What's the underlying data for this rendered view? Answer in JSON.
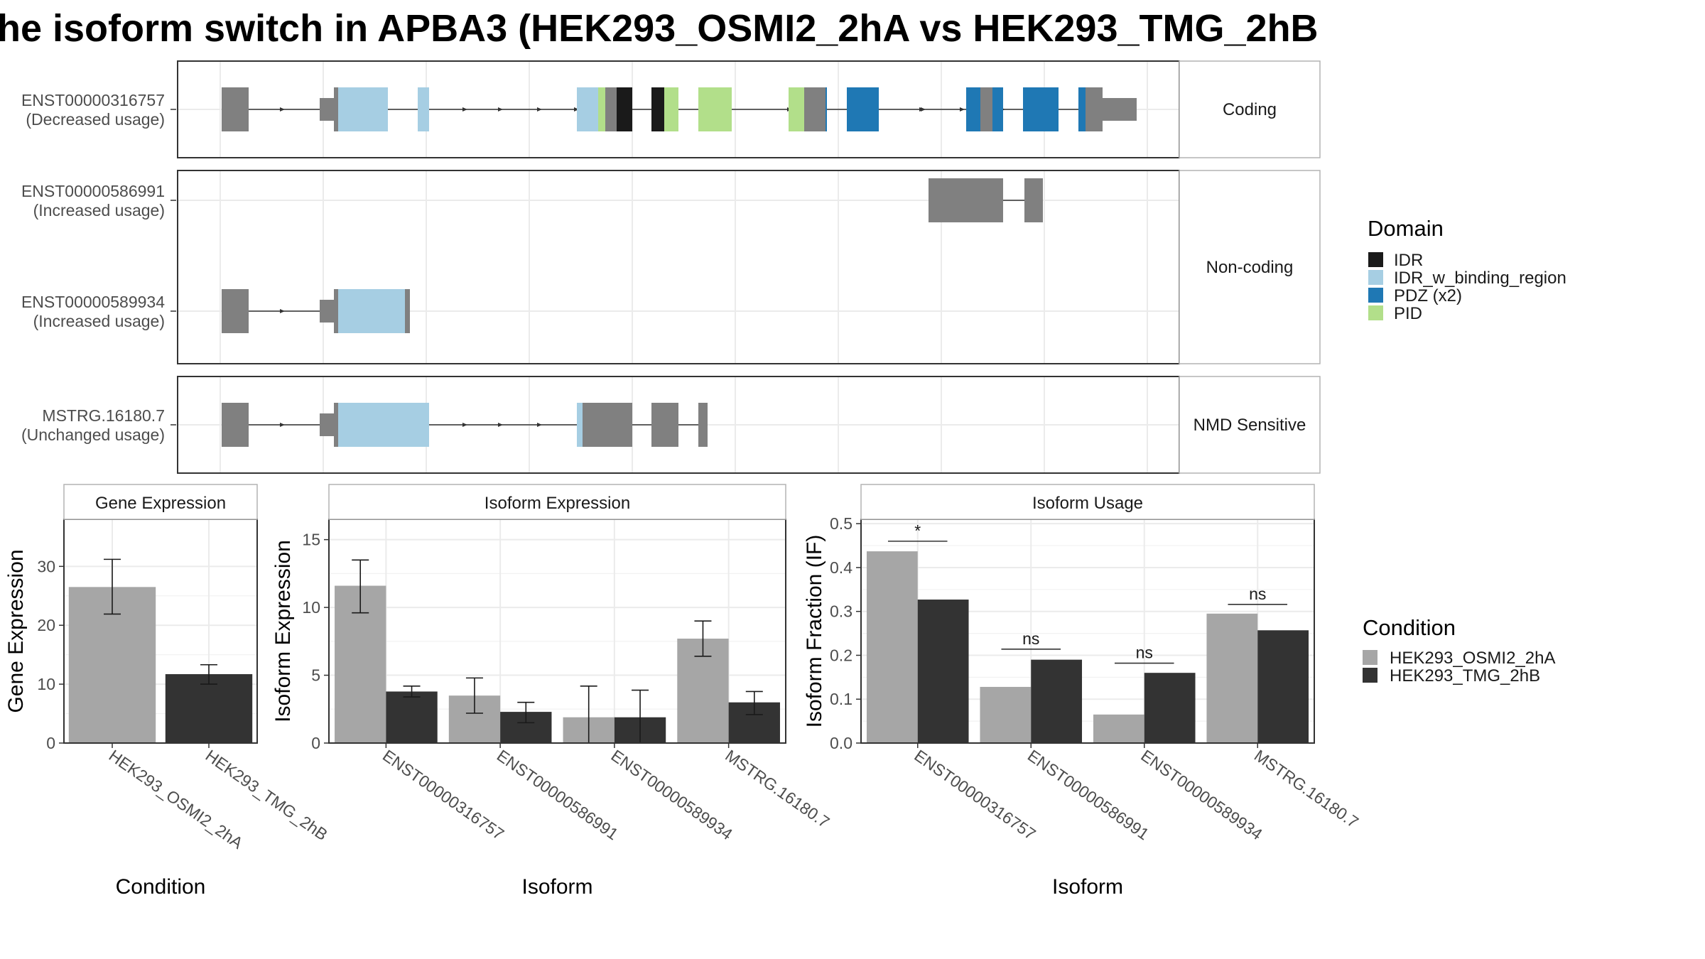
{
  "title": "he isoform switch in APBA3 (HEK293_OSMI2_2hA vs HEK293_TMG_2hB",
  "transcripts": [
    {
      "id": "ENST00000316757",
      "usage": "(Decreased usage)",
      "group": "Coding"
    },
    {
      "id": "ENST00000586991",
      "usage": "(Increased usage)",
      "group": "Non-coding"
    },
    {
      "id": "ENST00000589934",
      "usage": "(Increased usage)",
      "group": "Non-coding"
    },
    {
      "id": "MSTRG.16180.7",
      "usage": "(Unchanged usage)",
      "group": "NMD Sensitive"
    }
  ],
  "groups": [
    "Coding",
    "Non-coding",
    "NMD Sensitive"
  ],
  "domain_legend": {
    "title": "Domain",
    "items": [
      {
        "label": "IDR",
        "color": "#1a1a1a"
      },
      {
        "label": "IDR_w_binding_region",
        "color": "#a6cee3"
      },
      {
        "label": "PDZ (x2)",
        "color": "#1f78b4"
      },
      {
        "label": "PID",
        "color": "#b2df8a"
      }
    ]
  },
  "condition_legend": {
    "title": "Condition",
    "items": [
      {
        "label": "HEK293_OSMI2_2hA",
        "color": "#a6a6a6"
      },
      {
        "label": "HEK293_TMG_2hB",
        "color": "#333333"
      }
    ]
  },
  "colors": {
    "exon": "#808080",
    "idr": "#1a1a1a",
    "idr_binding": "#a6cee3",
    "pdz": "#1f78b4",
    "pid": "#b2df8a"
  },
  "chart_data": [
    {
      "type": "bar",
      "title": "Gene Expression",
      "xlabel": "Condition",
      "ylabel": "Gene Expression",
      "categories": [
        "HEK293_OSMI2_2hA",
        "HEK293_TMG_2hB"
      ],
      "values": [
        26.5,
        11.7
      ],
      "error_low": [
        21.9,
        10.0
      ],
      "error_high": [
        31.2,
        13.3
      ],
      "ylim": [
        0,
        38
      ],
      "yticks": [
        0,
        10,
        20,
        30
      ]
    },
    {
      "type": "bar",
      "title": "Isoform Expression",
      "xlabel": "Isoform",
      "ylabel": "Isoform Expression",
      "categories": [
        "ENST00000316757",
        "ENST00000586991",
        "ENST00000589934",
        "MSTRG.16180.7"
      ],
      "series": [
        {
          "name": "HEK293_OSMI2_2hA",
          "values": [
            11.6,
            3.5,
            1.9,
            7.7
          ],
          "error_low": [
            9.6,
            2.2,
            0.0,
            6.4
          ],
          "error_high": [
            13.5,
            4.8,
            4.2,
            9.0
          ]
        },
        {
          "name": "HEK293_TMG_2hB",
          "values": [
            3.8,
            2.3,
            1.9,
            3.0
          ],
          "error_low": [
            3.4,
            1.5,
            0.0,
            2.1
          ],
          "error_high": [
            4.2,
            3.0,
            3.9,
            3.8
          ]
        }
      ],
      "ylim": [
        0,
        16.5
      ],
      "yticks": [
        0,
        5,
        10,
        15
      ]
    },
    {
      "type": "bar",
      "title": "Isoform Usage",
      "xlabel": "Isoform",
      "ylabel": "Isoform Fraction (IF)",
      "categories": [
        "ENST00000316757",
        "ENST00000586991",
        "ENST00000589934",
        "MSTRG.16180.7"
      ],
      "series": [
        {
          "name": "HEK293_OSMI2_2hA",
          "values": [
            0.437,
            0.128,
            0.065,
            0.295
          ]
        },
        {
          "name": "HEK293_TMG_2hB",
          "values": [
            0.327,
            0.19,
            0.16,
            0.257
          ]
        }
      ],
      "significance": [
        "*",
        "ns",
        "ns",
        "ns"
      ],
      "sig_line_y": [
        0.46,
        0.214,
        0.182,
        0.316
      ],
      "ylim": [
        0,
        0.51
      ],
      "yticks": [
        0.0,
        0.1,
        0.2,
        0.3,
        0.4,
        0.5
      ],
      "ytick_labels": [
        "0.0",
        "0.1",
        "0.2",
        "0.3",
        "0.4",
        "0.5"
      ]
    }
  ]
}
